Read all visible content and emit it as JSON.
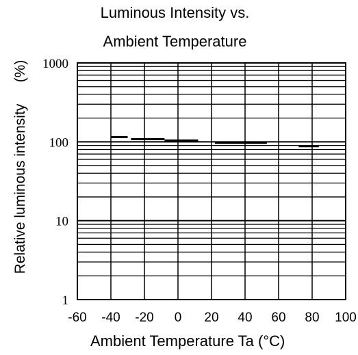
{
  "chart_data": {
    "type": "line",
    "title": "Luminous Intensity vs.",
    "subtitle": "Ambient Temperature",
    "xlabel": "Ambient Temperature Ta (°C)",
    "ylabel": "Relative luminous intensity",
    "yunit": "(%)",
    "xlim": [
      -60,
      100
    ],
    "ylim": [
      1,
      1000
    ],
    "yscale": "log",
    "grid": true,
    "xticks": [
      -60,
      -40,
      -20,
      0,
      20,
      40,
      60,
      80,
      100
    ],
    "xtick_labels": [
      "-60",
      "-40",
      "-20",
      "0",
      "20",
      "40",
      "60",
      "80",
      "100"
    ],
    "yticks": [
      1,
      10,
      100,
      1000
    ],
    "ytick_labels": [
      "1",
      "10",
      "100",
      "1000"
    ],
    "series": [
      {
        "segments": [
          {
            "x": [
              -40,
              -30
            ],
            "y": [
              115,
              115
            ]
          },
          {
            "x": [
              -28,
              -8
            ],
            "y": [
              108,
              108
            ]
          },
          {
            "x": [
              -8,
              12
            ],
            "y": [
              104,
              104
            ]
          },
          {
            "x": [
              22,
              53
            ],
            "y": [
              97,
              97
            ]
          },
          {
            "x": [
              72,
              84
            ],
            "y": [
              88,
              88
            ]
          }
        ]
      }
    ],
    "colors": {
      "line": "#000000",
      "grid": "#000000",
      "background": "#ffffff"
    }
  }
}
